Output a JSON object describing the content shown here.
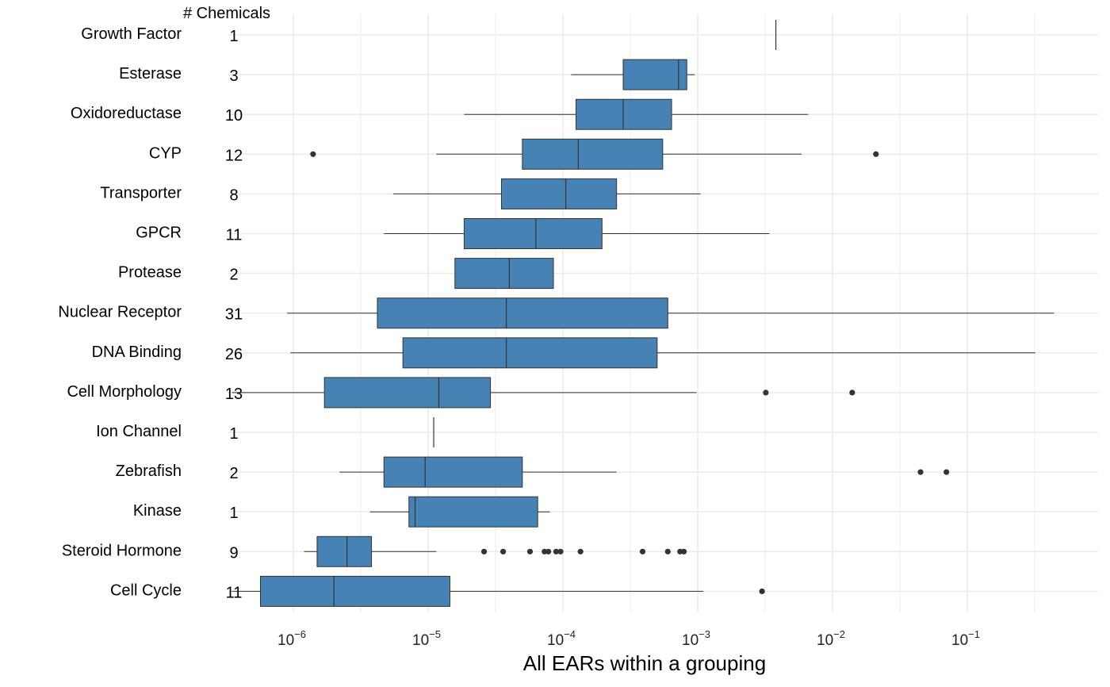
{
  "chart_data": {
    "type": "boxplot",
    "orientation": "horizontal",
    "x_scale": "log10",
    "xlabel": "All EARs within a grouping",
    "count_column_title": "# Chemicals",
    "xlim": [
      3.3e-07,
      0.5
    ],
    "x_ticks": [
      {
        "value": 1e-06,
        "base": "10",
        "exp": "−6"
      },
      {
        "value": 1e-05,
        "base": "10",
        "exp": "−5"
      },
      {
        "value": 0.0001,
        "base": "10",
        "exp": "−4"
      },
      {
        "value": 0.001,
        "base": "10",
        "exp": "−3"
      },
      {
        "value": 0.01,
        "base": "10",
        "exp": "−2"
      },
      {
        "value": 0.1,
        "base": "10",
        "exp": "−1"
      }
    ],
    "grid": true,
    "box_color": "#4682B4",
    "line_color": "#333333",
    "grid_color": "#ebebeb",
    "categories": [
      {
        "label": "Growth Factor",
        "count": "1",
        "whisker_low": 0.0038,
        "q1": 0.0038,
        "median": 0.0038,
        "q3": 0.0038,
        "whisker_high": 0.0038,
        "outliers": []
      },
      {
        "label": "Esterase",
        "count": "3",
        "whisker_low": 0.000115,
        "q1": 0.00028,
        "median": 0.00072,
        "q3": 0.00083,
        "whisker_high": 0.00095,
        "outliers": []
      },
      {
        "label": "Oxidoreductase",
        "count": "10",
        "whisker_low": 1.85e-05,
        "q1": 0.000125,
        "median": 0.00028,
        "q3": 0.00064,
        "whisker_high": 0.0066,
        "outliers": []
      },
      {
        "label": "CYP",
        "count": "12",
        "whisker_low": 1.15e-05,
        "q1": 5e-05,
        "median": 0.00013,
        "q3": 0.00055,
        "whisker_high": 0.0059,
        "outliers": [
          1.4e-06,
          0.021
        ]
      },
      {
        "label": "Transporter",
        "count": "8",
        "whisker_low": 5.5e-06,
        "q1": 3.5e-05,
        "median": 0.000105,
        "q3": 0.00025,
        "whisker_high": 0.00105,
        "outliers": []
      },
      {
        "label": "GPCR",
        "count": "11",
        "whisker_low": 4.7e-06,
        "q1": 1.85e-05,
        "median": 6.3e-05,
        "q3": 0.000195,
        "whisker_high": 0.0034,
        "outliers": []
      },
      {
        "label": "Protease",
        "count": "2",
        "whisker_low": 1.58e-05,
        "q1": 1.58e-05,
        "median": 4e-05,
        "q3": 8.5e-05,
        "whisker_high": 8.5e-05,
        "outliers": []
      },
      {
        "label": "Nuclear Receptor",
        "count": "31",
        "whisker_low": 9e-07,
        "q1": 4.2e-06,
        "median": 3.8e-05,
        "q3": 0.0006,
        "whisker_high": 0.44,
        "outliers": []
      },
      {
        "label": "DNA Binding",
        "count": "26",
        "whisker_low": 9.5e-07,
        "q1": 6.5e-06,
        "median": 3.8e-05,
        "q3": 0.0005,
        "whisker_high": 0.32,
        "outliers": []
      },
      {
        "label": "Cell Morphology",
        "count": "13",
        "whisker_low": 3.5e-07,
        "q1": 1.7e-06,
        "median": 1.2e-05,
        "q3": 2.9e-05,
        "whisker_high": 0.00098,
        "outliers": [
          0.0032,
          0.014
        ]
      },
      {
        "label": "Ion Channel",
        "count": "1",
        "whisker_low": 1.1e-05,
        "q1": 1.1e-05,
        "median": 1.1e-05,
        "q3": 1.1e-05,
        "whisker_high": 1.1e-05,
        "outliers": []
      },
      {
        "label": "Zebrafish",
        "count": "2",
        "whisker_low": 2.2e-06,
        "q1": 4.7e-06,
        "median": 9.5e-06,
        "q3": 5e-05,
        "whisker_high": 0.00025,
        "outliers": [
          0.045,
          0.07
        ]
      },
      {
        "label": "Kinase",
        "count": "1",
        "whisker_low": 3.7e-06,
        "q1": 7.2e-06,
        "median": 8e-06,
        "q3": 6.5e-05,
        "whisker_high": 8e-05,
        "outliers": []
      },
      {
        "label": "Steroid Hormone",
        "count": "9",
        "whisker_low": 1.2e-06,
        "q1": 1.5e-06,
        "median": 2.5e-06,
        "q3": 3.8e-06,
        "whisker_high": 1.15e-05,
        "outliers": [
          2.6e-05,
          3.6e-05,
          5.7e-05,
          7.3e-05,
          7.8e-05,
          8.9e-05,
          9.6e-05,
          0.000135,
          0.00039,
          0.0006,
          0.00074,
          0.00079
        ]
      },
      {
        "label": "Cell Cycle",
        "count": "11",
        "whisker_low": 3.5e-07,
        "q1": 5.7e-07,
        "median": 2e-06,
        "q3": 1.45e-05,
        "whisker_high": 0.0011,
        "outliers": [
          0.003
        ]
      }
    ]
  }
}
